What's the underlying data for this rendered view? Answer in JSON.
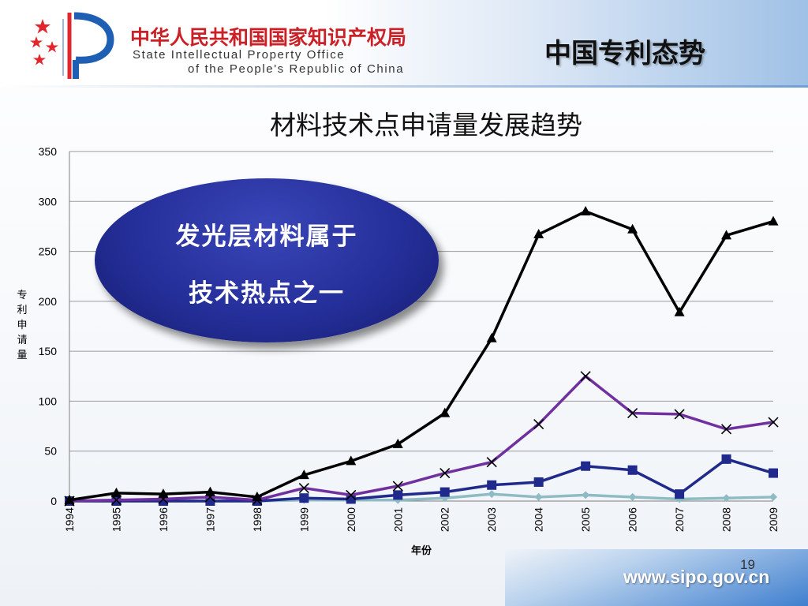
{
  "header": {
    "org_name_cn": "中华人民共和国国家知识产权局",
    "org_name_en_line1": "State Intellectual Property Office",
    "org_name_en_line2": "of the People's Republic of China",
    "section_title": "中国专利态势"
  },
  "callout": {
    "line1": "发光层材料属于",
    "line2": "技术热点之一"
  },
  "footer": {
    "page_number": "19",
    "url": "www.sipo.gov.cn"
  },
  "colors": {
    "brand_red": "#cc2027",
    "callout_blue": "#252f9a"
  },
  "chart_data": {
    "type": "line",
    "title": "材料技术点申请量发展趋势",
    "xlabel": "年份",
    "ylabel": "专利申请量",
    "ylim": [
      0,
      350
    ],
    "yticks": [
      "0",
      "50",
      "100",
      "150",
      "200",
      "250",
      "300",
      "350"
    ],
    "categories": [
      "1994",
      "1995",
      "1996",
      "1997",
      "1998",
      "1999",
      "2000",
      "2001",
      "2002",
      "2003",
      "2004",
      "2005",
      "2006",
      "2007",
      "2008",
      "2009"
    ],
    "grid": true,
    "legend": "none",
    "series": [
      {
        "color": "#000000",
        "marker": "triangle",
        "values": [
          1,
          8,
          7,
          9,
          4,
          26,
          40,
          57,
          88,
          163,
          267,
          290,
          272,
          189,
          266,
          280
        ]
      },
      {
        "color": "#7030a0",
        "marker": "x",
        "values": [
          0,
          1,
          2,
          4,
          1,
          13,
          6,
          15,
          28,
          39,
          77,
          125,
          88,
          87,
          72,
          79
        ]
      },
      {
        "color": "#1f2a8c",
        "marker": "square",
        "values": [
          0,
          0,
          0,
          0,
          0,
          3,
          2,
          6,
          9,
          16,
          19,
          35,
          31,
          7,
          42,
          28
        ]
      },
      {
        "color": "#8fbcc4",
        "marker": "diamond",
        "values": [
          0,
          0,
          0,
          0,
          0,
          1,
          1,
          1,
          3,
          7,
          4,
          6,
          4,
          2,
          3,
          4
        ]
      }
    ]
  }
}
